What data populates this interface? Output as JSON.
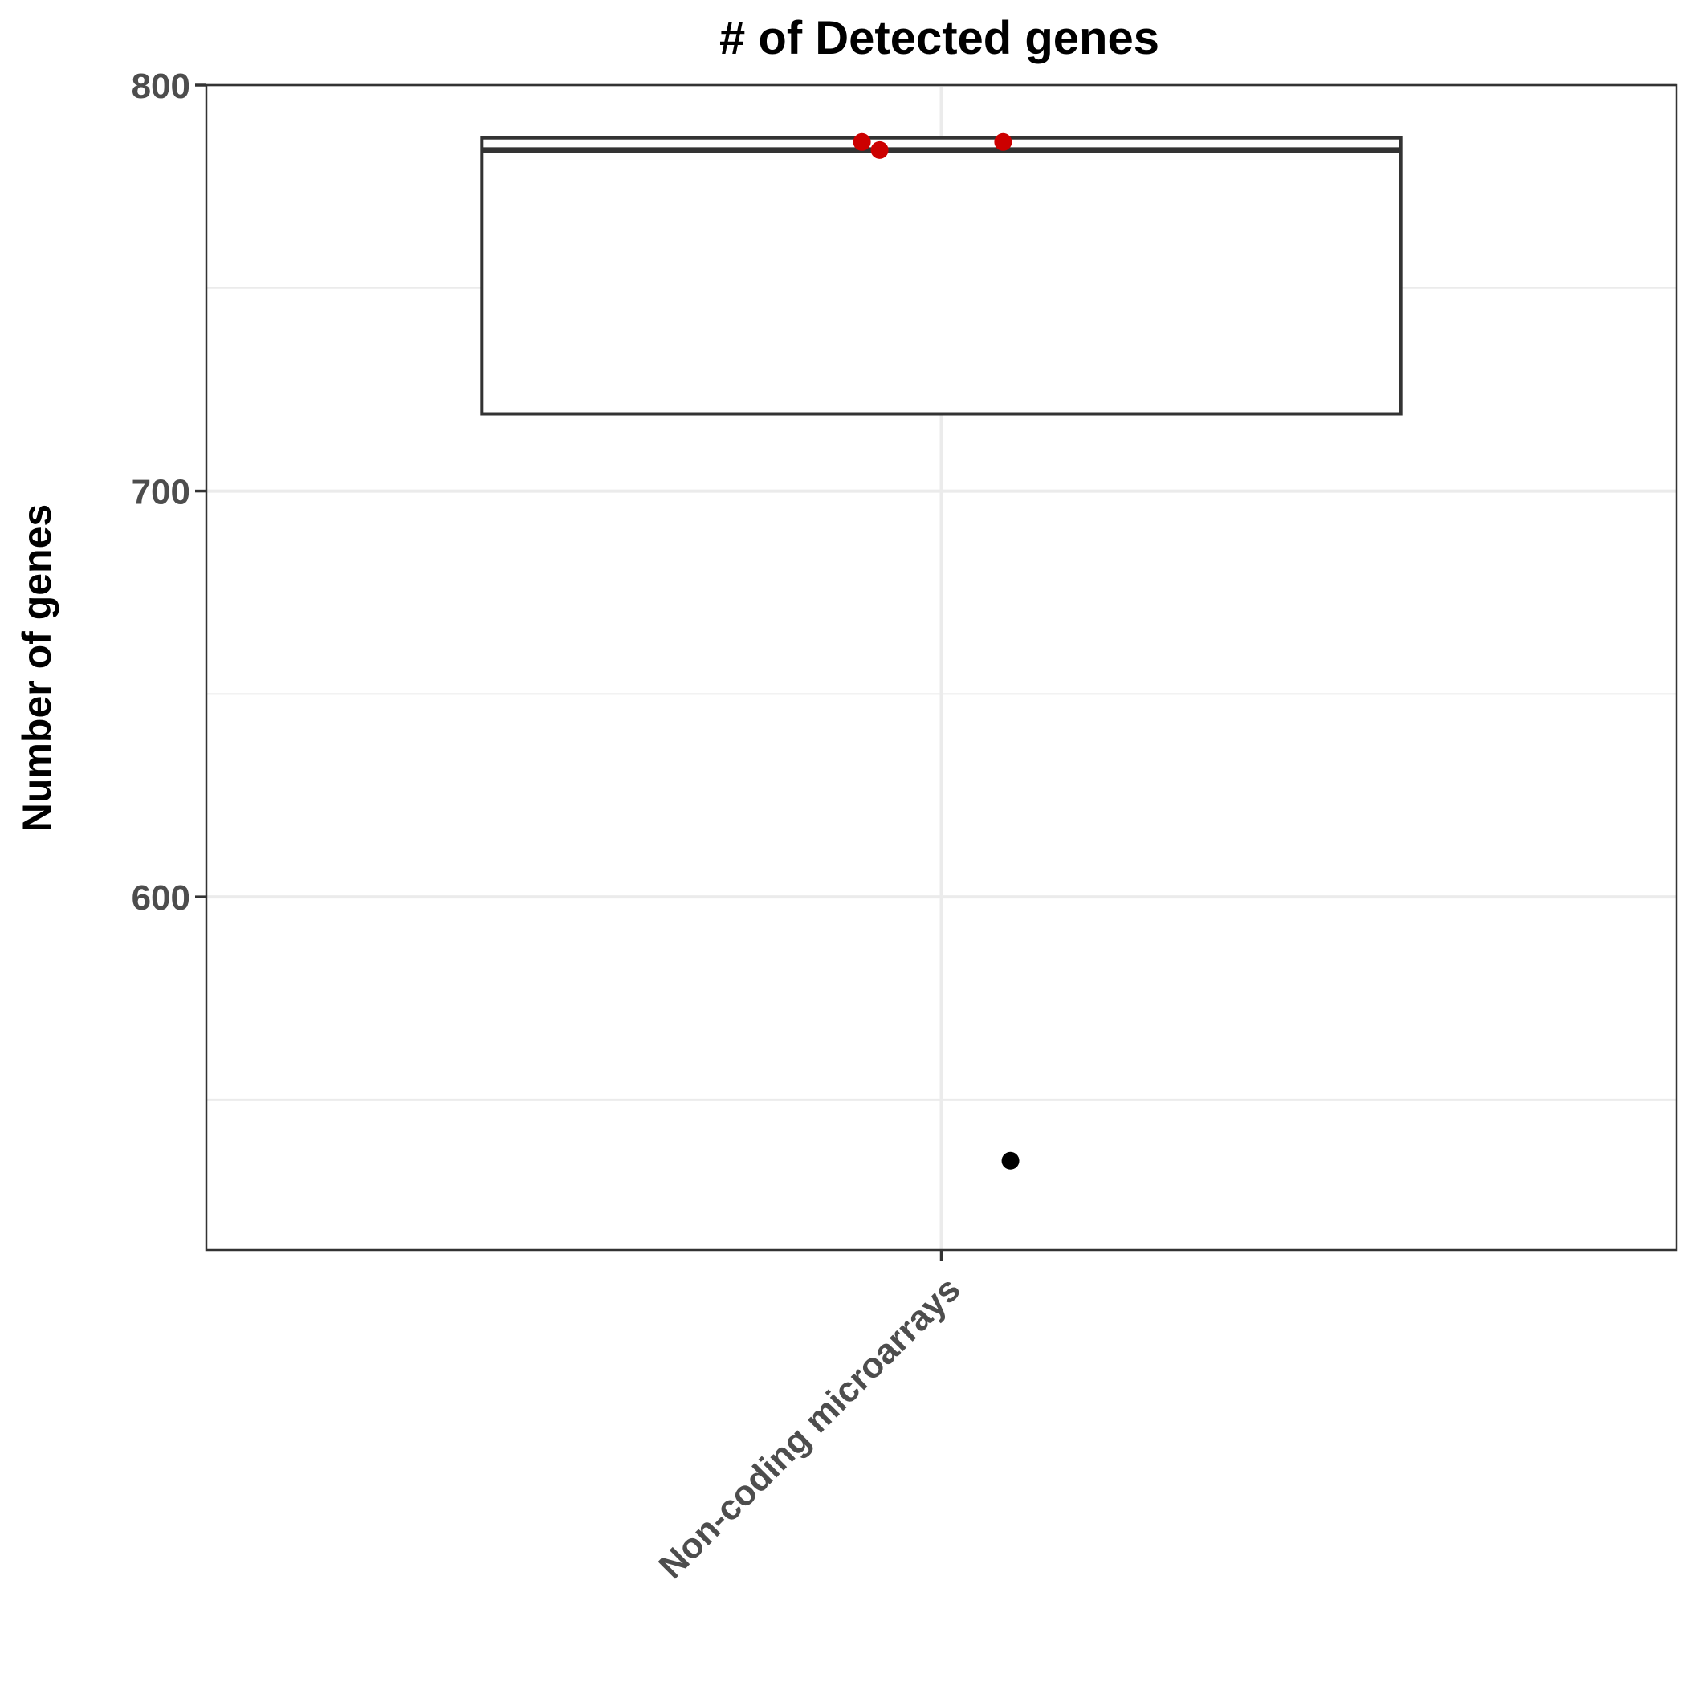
{
  "chart_data": {
    "type": "box",
    "title": "# of Detected genes",
    "xlabel": "",
    "ylabel": "Number of genes",
    "categories": [
      "Non-coding microarrays"
    ],
    "ylim": [
      513,
      800
    ],
    "y_ticks": [
      600,
      700,
      800
    ],
    "grid": true,
    "boxes": [
      {
        "category": "Non-coding microarrays",
        "q1": 719,
        "median": 784,
        "q3": 787,
        "whisker_low": 719,
        "whisker_high": 787,
        "outliers": [
          535
        ]
      }
    ],
    "points": [
      {
        "category": "Non-coding microarrays",
        "y": 786,
        "jitter": -0.09
      },
      {
        "category": "Non-coding microarrays",
        "y": 784,
        "jitter": -0.07
      },
      {
        "category": "Non-coding microarrays",
        "y": 786,
        "jitter": 0.07
      }
    ],
    "colors": {
      "points": "#cc0000",
      "outlier": "#000000",
      "box_line": "#333333",
      "grid": "#ebebeb",
      "panel_border": "#333333"
    }
  }
}
